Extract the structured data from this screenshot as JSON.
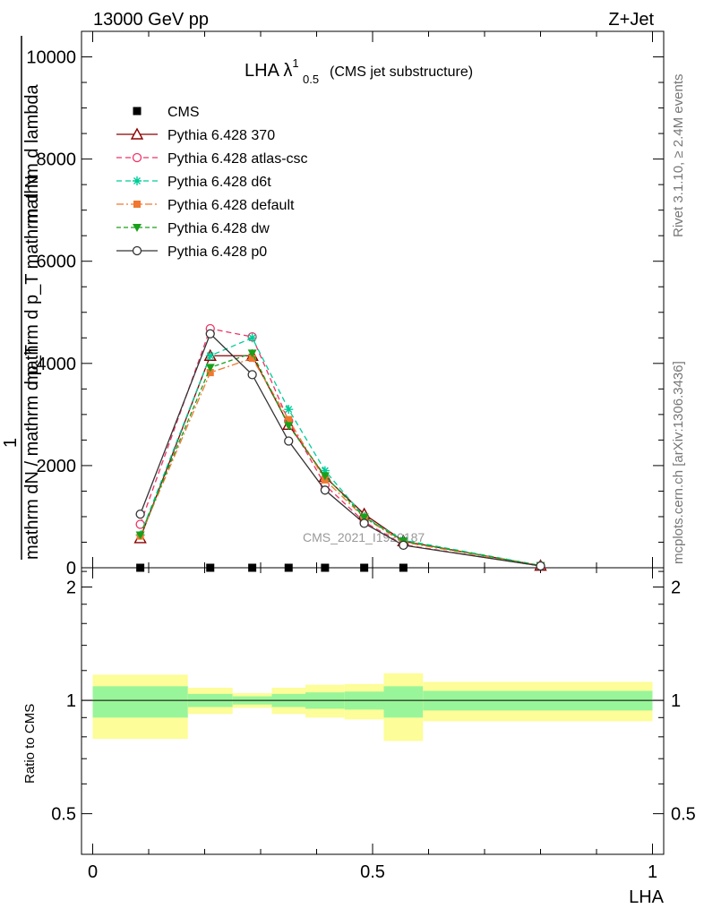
{
  "header": {
    "energy": "13000 GeV pp",
    "process": "Z+Jet"
  },
  "side_labels": {
    "rivet": "Rivet 3.1.10, ≥ 2.4M events",
    "mcplots": "mcplots.cern.ch [arXiv:1306.3436]"
  },
  "watermark": "CMS_2021_I1920187",
  "chart_data": [
    {
      "type": "line",
      "title_main": "LHA λ",
      "title_sup": "1",
      "title_sub": "0.5",
      "title_suffix": "(CMS jet substructure)",
      "ylabel_lines": [
        "mathrm d lambda",
        "mathrm d p_T mathrm d N",
        "1",
        "mathrm dN / mathrm d p_T"
      ],
      "ylim": [
        0,
        10500
      ],
      "yticks": [
        0,
        2000,
        4000,
        6000,
        8000,
        10000
      ],
      "ytick_labels": [
        "0",
        "2000",
        "4000",
        "6000",
        "8000",
        "10000"
      ],
      "xlim": [
        -0.02,
        1.02
      ],
      "data_points": {
        "name": "CMS",
        "x": [
          0.085,
          0.21,
          0.285,
          0.35,
          0.415,
          0.485,
          0.555
        ],
        "y": [
          0,
          0,
          0,
          0,
          0,
          0,
          0
        ]
      },
      "series": [
        {
          "name": "Pythia 6.428 370",
          "color": "#8b0000",
          "dash": "",
          "marker": "triangle-open",
          "x": [
            0.085,
            0.21,
            0.285,
            0.35,
            0.415,
            0.485,
            0.555,
            0.8
          ],
          "y": [
            580,
            4150,
            4150,
            2800,
            1780,
            1050,
            520,
            40
          ]
        },
        {
          "name": "Pythia 6.428 atlas-csc",
          "color": "#ee3366",
          "dash": "6,4",
          "marker": "circle-open",
          "x": [
            0.085,
            0.21,
            0.285,
            0.35,
            0.415,
            0.485,
            0.555,
            0.8
          ],
          "y": [
            850,
            4680,
            4520,
            2870,
            1620,
            900,
            450,
            35
          ]
        },
        {
          "name": "Pythia 6.428 d6t",
          "color": "#00cc99",
          "dash": "6,4",
          "marker": "star",
          "x": [
            0.085,
            0.21,
            0.285,
            0.35,
            0.415,
            0.485,
            0.555,
            0.8
          ],
          "y": [
            640,
            4150,
            4500,
            3100,
            1900,
            1000,
            540,
            45
          ]
        },
        {
          "name": "Pythia 6.428 default",
          "color": "#f07830",
          "dash": "8,3,2,3",
          "marker": "square",
          "x": [
            0.085,
            0.21,
            0.285,
            0.35,
            0.415,
            0.485,
            0.555,
            0.8
          ],
          "y": [
            620,
            3820,
            4100,
            2900,
            1720,
            980,
            500,
            40
          ]
        },
        {
          "name": "Pythia 6.428 dw",
          "color": "#1aa01a",
          "dash": "5,3",
          "marker": "triangle-down",
          "x": [
            0.085,
            0.21,
            0.285,
            0.35,
            0.415,
            0.485,
            0.555,
            0.8
          ],
          "y": [
            640,
            3920,
            4200,
            2780,
            1800,
            990,
            520,
            42
          ]
        },
        {
          "name": "Pythia 6.428 p0",
          "color": "#333333",
          "dash": "",
          "marker": "circle-open",
          "x": [
            0.085,
            0.21,
            0.285,
            0.35,
            0.415,
            0.485,
            0.555,
            0.8
          ],
          "y": [
            1050,
            4580,
            3780,
            2480,
            1520,
            870,
            440,
            35
          ]
        }
      ]
    },
    {
      "type": "area",
      "ylabel": "Ratio to CMS",
      "ylim": [
        0.39,
        2.25
      ],
      "yticks": [
        0.5,
        1,
        2
      ],
      "ytick_labels": [
        "0.5",
        "1",
        "2"
      ],
      "xlabel": "LHA",
      "xlim": [
        -0.02,
        1.02
      ],
      "xticks": [
        0,
        0.5,
        1
      ],
      "xtick_labels": [
        "0",
        "0.5",
        "1"
      ],
      "bands": {
        "edges": [
          0.0,
          0.17,
          0.25,
          0.32,
          0.38,
          0.45,
          0.52,
          0.59,
          1.0
        ],
        "inner_color": "#99f599",
        "outer_color": "#fdfd99",
        "inner_lo": [
          0.9,
          0.96,
          0.975,
          0.96,
          0.95,
          0.945,
          0.9,
          0.94
        ],
        "inner_hi": [
          1.09,
          1.04,
          1.025,
          1.04,
          1.05,
          1.055,
          1.09,
          1.06
        ],
        "outer_lo": [
          0.79,
          0.92,
          0.955,
          0.92,
          0.9,
          0.89,
          0.78,
          0.88
        ],
        "outer_hi": [
          1.17,
          1.08,
          1.045,
          1.08,
          1.1,
          1.105,
          1.18,
          1.12
        ]
      },
      "reference_value": 1
    }
  ]
}
